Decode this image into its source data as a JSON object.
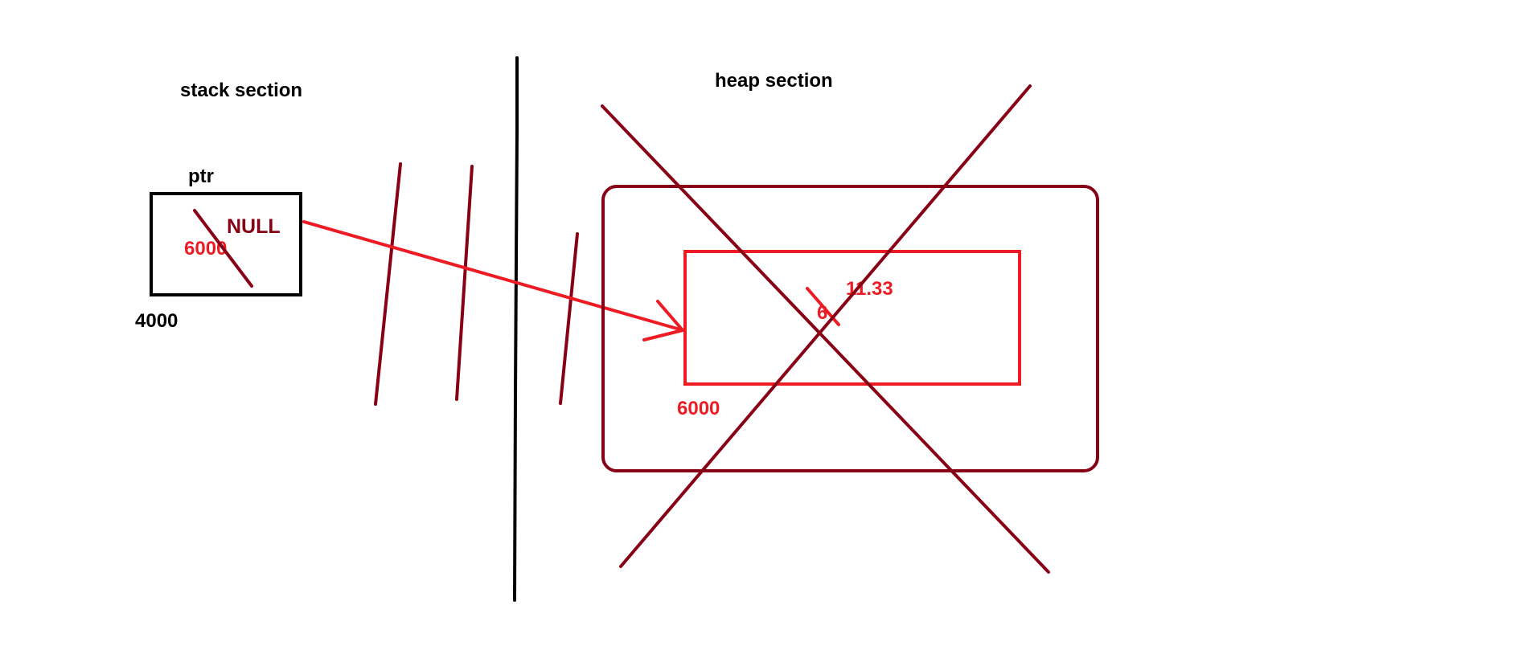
{
  "labels": {
    "stack_section": "stack section",
    "heap_section": "heap section",
    "ptr": "ptr",
    "null_value": "NULL",
    "old_ptr_value": "6000",
    "stack_address": "4000",
    "heap_address": "6000",
    "new_value": "11.33",
    "old_value": "6"
  },
  "colors": {
    "black": "#000000",
    "dark_red": "#880015",
    "red": "#ed1c24"
  }
}
